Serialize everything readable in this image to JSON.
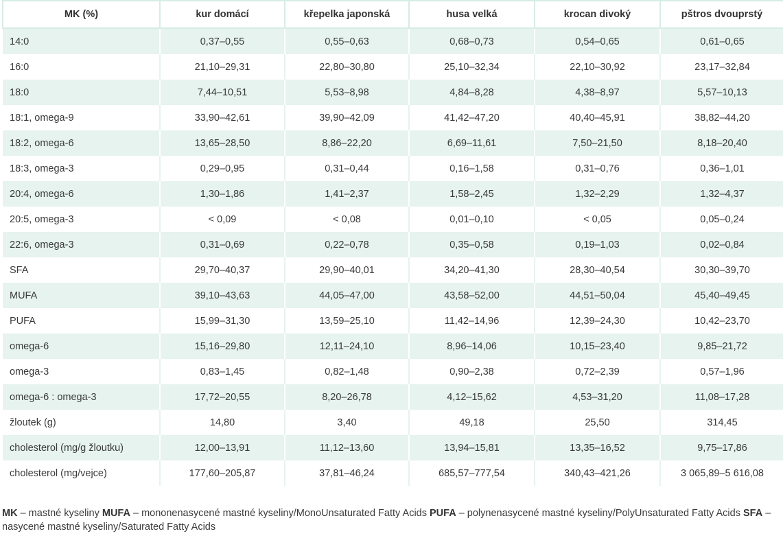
{
  "table": {
    "headers": [
      "MK (%)",
      "kur domácí",
      "křepelka japonská",
      "husa velká",
      "krocan divoký",
      "pštros dvouprstý"
    ],
    "rows": [
      [
        "14:0",
        "0,37–0,55",
        "0,55–0,63",
        "0,68–0,73",
        "0,54–0,65",
        "0,61–0,65"
      ],
      [
        "16:0",
        "21,10–29,31",
        "22,80–30,80",
        "25,10–32,34",
        "22,10–30,92",
        "23,17–32,84"
      ],
      [
        "18:0",
        "7,44–10,51",
        "5,53–8,98",
        "4,84–8,28",
        "4,38–8,97",
        "5,57–10,13"
      ],
      [
        "18:1, omega-9",
        "33,90–42,61",
        "39,90–42,09",
        "41,42–47,20",
        "40,40–45,91",
        "38,82–44,20"
      ],
      [
        "18:2, omega-6",
        "13,65–28,50",
        "8,86–22,20",
        "6,69–11,61",
        "7,50–21,50",
        "8,18–20,40"
      ],
      [
        "18:3, omega-3",
        "0,29–0,95",
        "0,31–0,44",
        "0,16–1,58",
        "0,31–0,76",
        "0,36–1,01"
      ],
      [
        "20:4, omega-6",
        "1,30–1,86",
        "1,41–2,37",
        "1,58–2,45",
        "1,32–2,29",
        "1,32–4,37"
      ],
      [
        "20:5, omega-3",
        "< 0,09",
        "< 0,08",
        "0,01–0,10",
        "< 0,05",
        "0,05–0,24"
      ],
      [
        "22:6, omega-3",
        "0,31–0,69",
        "0,22–0,78",
        "0,35–0,58",
        "0,19–1,03",
        "0,02–0,84"
      ],
      [
        "SFA",
        "29,70–40,37",
        "29,90–40,01",
        "34,20–41,30",
        "28,30–40,54",
        "30,30–39,70"
      ],
      [
        "MUFA",
        "39,10–43,63",
        "44,05–47,00",
        "43,58–52,00",
        "44,51–50,04",
        "45,40–49,45"
      ],
      [
        "PUFA",
        "15,99–31,30",
        "13,59–25,10",
        "11,42–14,96",
        "12,39–24,30",
        "10,42–23,70"
      ],
      [
        "omega-6",
        "15,16–29,80",
        "12,11–24,10",
        "8,96–14,06",
        "10,15–23,40",
        "9,85–21,72"
      ],
      [
        "omega-3",
        "0,83–1,45",
        "0,82–1,48",
        "0,90–2,38",
        "0,72–2,39",
        "0,57–1,96"
      ],
      [
        "omega-6 : omega-3",
        "17,72–20,55",
        "8,20–26,78",
        "4,12–15,62",
        "4,53–31,20",
        "11,08–17,28"
      ],
      [
        "žloutek (g)",
        "14,80",
        "3,40",
        "49,18",
        "25,50",
        "314,45"
      ],
      [
        "cholesterol (mg/g žloutku)",
        "12,00–13,91",
        "11,12–13,60",
        "13,94–15,81",
        "13,35–16,52",
        "9,75–17,86"
      ],
      [
        "cholesterol (mg/vejce)",
        "177,60–205,87",
        "37,81–46,24",
        "685,57–777,54",
        "340,43–421,26",
        "3 065,89–5 616,08"
      ]
    ]
  },
  "footnote": {
    "items": [
      {
        "abbr": "MK",
        "text": " – mastné kyseliny "
      },
      {
        "abbr": "MUFA",
        "text": " – mononenasycené mastné kyseliny/MonoUnsaturated Fatty Acids "
      },
      {
        "abbr": "PUFA",
        "text": " – polynenasycené mastné kyseliny/PolyUnsaturated Fatty Acids "
      },
      {
        "abbr": "SFA",
        "text": " – nasycené mastné kyseliny/Saturated Fatty Acids"
      }
    ]
  }
}
